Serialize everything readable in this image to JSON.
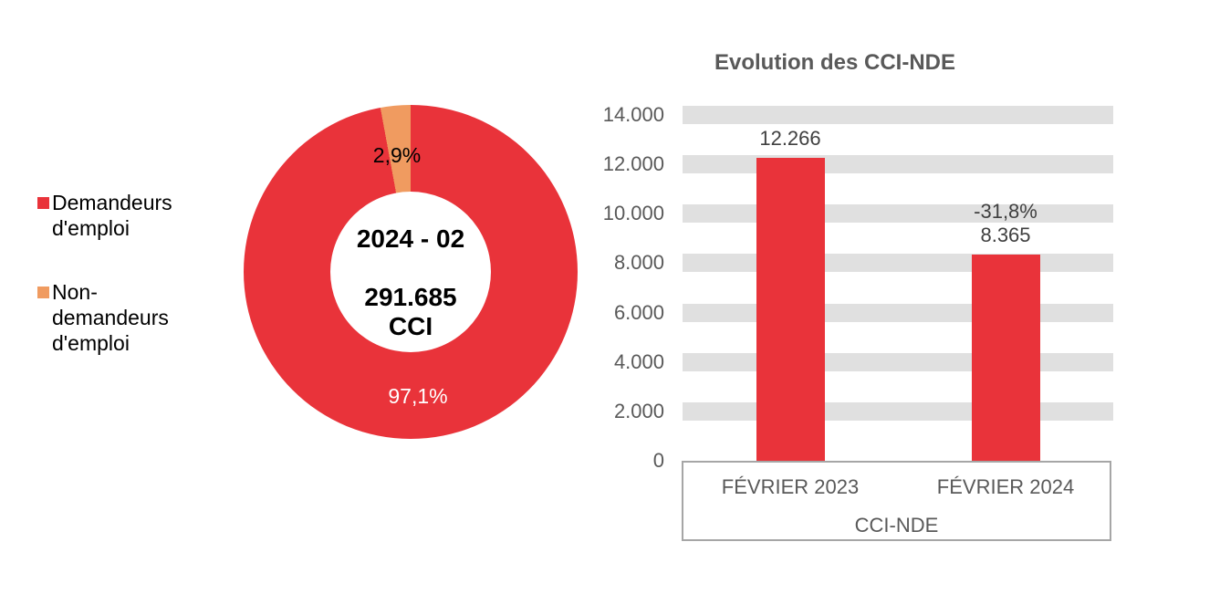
{
  "colors": {
    "red": "#E9333A",
    "orange": "#F09B60",
    "band_gray": "#E0E0E0",
    "box_border_gray": "#A6A6A6",
    "axis_text_gray": "#595959",
    "data_label_gray": "#404040"
  },
  "donut_chart": {
    "center_period": "2024 - 02",
    "center_total": "291.685",
    "center_unit": "CCI",
    "legend": [
      {
        "label": "Demandeurs d'emploi",
        "color": "#E9333A"
      },
      {
        "label": "Non-demandeurs d'emploi",
        "color": "#F09B60"
      }
    ],
    "slices": [
      {
        "name": "Demandeurs d'emploi",
        "value_pct": 97.1,
        "label": "97,1%",
        "color": "#E9333A"
      },
      {
        "name": "Non-demandeurs d'emploi",
        "value_pct": 2.9,
        "label": "2,9%",
        "color": "#F09B60"
      }
    ]
  },
  "bar_chart": {
    "title": "Evolution des CCI-NDE",
    "y_ticks": [
      "14.000",
      "12.000",
      "10.000",
      "8.000",
      "6.000",
      "4.000",
      "2.000",
      "0"
    ],
    "y_max": 14000,
    "y_step": 2000,
    "categories": [
      "FÉVRIER 2023",
      "FÉVRIER 2024"
    ],
    "values": [
      12266,
      8365
    ],
    "value_labels": [
      "12.266",
      "8.365"
    ],
    "delta_labels": [
      null,
      "-31,8%"
    ],
    "axis_group_label": "CCI-NDE",
    "bar_color": "#E9333A",
    "band_color": "#E0E0E0"
  },
  "chart_data": [
    {
      "type": "pie",
      "subtype": "donut",
      "labels": [
        "Demandeurs d'emploi",
        "Non-demandeurs d'emploi"
      ],
      "values": [
        97.1,
        2.9
      ],
      "unit": "%",
      "colors": [
        "#E9333A",
        "#F09B60"
      ],
      "center_text": [
        "2024 - 02",
        "291.685",
        "CCI"
      ],
      "legend_position": "left",
      "start_angle_deg": 0,
      "direction": "clockwise"
    },
    {
      "type": "bar",
      "title": "Evolution des CCI-NDE",
      "categories": [
        "FÉVRIER 2023",
        "FÉVRIER 2024"
      ],
      "values": [
        12266,
        8365
      ],
      "data_labels": [
        "12.266",
        "8.365"
      ],
      "annotations": [
        {
          "category": "FÉVRIER 2024",
          "text": "-31,8%"
        }
      ],
      "xlabel": "CCI-NDE",
      "ylabel": "",
      "ylim": [
        0,
        14000
      ],
      "ytick_step": 2000,
      "grid": "horizontal-bands",
      "legend_position": "none"
    }
  ]
}
